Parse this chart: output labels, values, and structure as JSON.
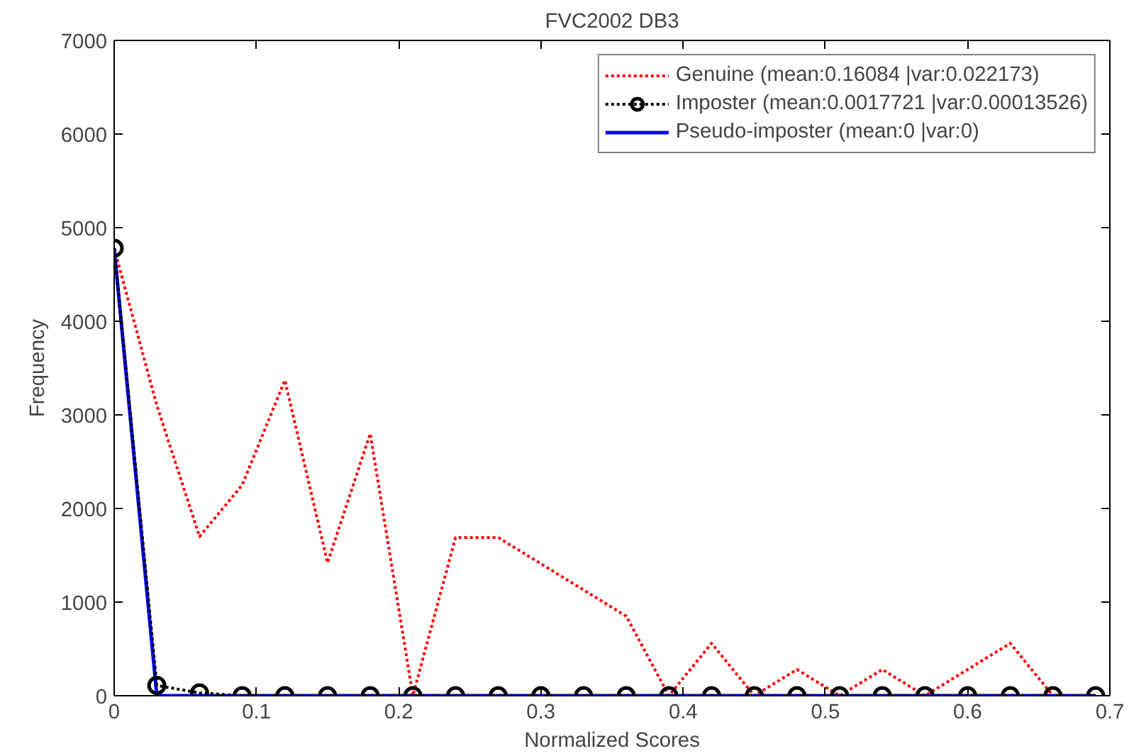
{
  "chart_data": {
    "type": "line",
    "title": "FVC2002 DB3",
    "xlabel": "Normalized Scores",
    "ylabel": "Frequency",
    "x": [
      0,
      0.03,
      0.06,
      0.09,
      0.12,
      0.15,
      0.18,
      0.21,
      0.24,
      0.27,
      0.3,
      0.33,
      0.36,
      0.39,
      0.42,
      0.45,
      0.48,
      0.51,
      0.54,
      0.57,
      0.6,
      0.63,
      0.66,
      0.69
    ],
    "series": [
      {
        "name": "Genuine (mean:0.16084 |var:0.022173)",
        "color": "#ff0000",
        "line_style": "dotted",
        "values": [
          4780,
          3100,
          1700,
          2250,
          3370,
          1420,
          2800,
          0,
          1690,
          1690,
          1410,
          1130,
          850,
          0,
          560,
          0,
          280,
          0,
          280,
          0,
          280,
          560,
          0,
          0
        ]
      },
      {
        "name": "Imposter (mean:0.0017721 |var:0.00013526)",
        "color": "#000000",
        "line_style": "dotted",
        "marker": "circle",
        "values": [
          4780,
          110,
          30,
          0,
          0,
          0,
          0,
          0,
          0,
          0,
          0,
          0,
          0,
          0,
          0,
          0,
          0,
          0,
          0,
          0,
          0,
          0,
          0,
          0
        ]
      },
      {
        "name": "Pseudo-imposter (mean:0 |var:0)",
        "color": "#0000ff",
        "line_style": "solid",
        "values": [
          4780,
          0,
          0,
          0,
          0,
          0,
          0,
          0,
          0,
          0,
          0,
          0,
          0,
          0,
          0,
          0,
          0,
          0,
          0,
          0,
          0,
          0,
          0,
          0
        ]
      }
    ],
    "xlim": [
      0,
      0.7
    ],
    "ylim": [
      0,
      7000
    ],
    "xticks": [
      0,
      0.1,
      0.2,
      0.3,
      0.4,
      0.5,
      0.6,
      0.7
    ],
    "yticks": [
      0,
      1000,
      2000,
      3000,
      4000,
      5000,
      6000,
      7000
    ],
    "grid": false,
    "legend": "top right"
  }
}
